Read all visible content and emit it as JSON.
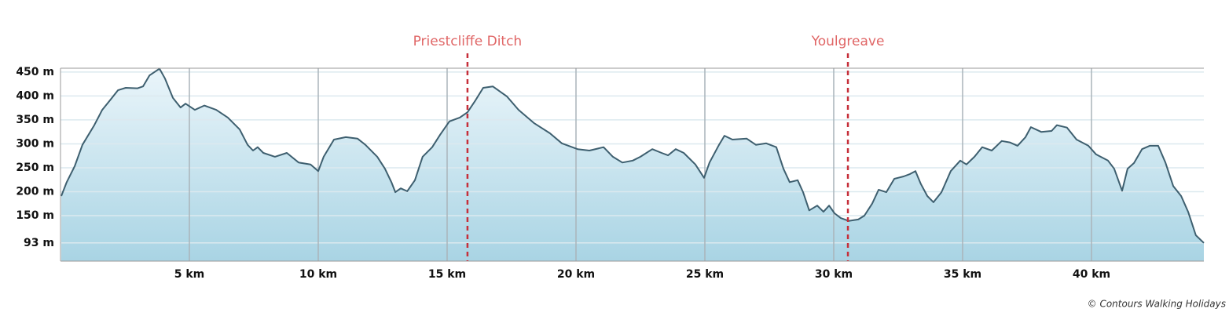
{
  "chart_data": {
    "type": "area",
    "x": [
      0.03,
      0.24,
      0.55,
      0.85,
      1.31,
      1.62,
      1.92,
      2.23,
      2.53,
      2.99,
      3.2,
      3.45,
      3.84,
      4.05,
      4.36,
      4.66,
      4.85,
      5.21,
      5.58,
      6.04,
      6.49,
      6.95,
      7.26,
      7.47,
      7.65,
      7.87,
      8.32,
      8.78,
      9.24,
      9.7,
      10.0,
      10.21,
      10.61,
      11.07,
      11.52,
      11.83,
      12.29,
      12.59,
      12.84,
      12.99,
      13.2,
      13.45,
      13.75,
      14.05,
      14.42,
      14.73,
      15.09,
      15.49,
      15.79,
      16.1,
      16.4,
      16.77,
      17.32,
      17.77,
      18.38,
      18.99,
      19.45,
      20.06,
      20.52,
      21.07,
      21.43,
      21.8,
      22.2,
      22.5,
      22.96,
      23.32,
      23.57,
      23.87,
      24.18,
      24.63,
      24.97,
      25.18,
      25.55,
      25.76,
      26.07,
      26.62,
      26.98,
      27.38,
      27.77,
      28.05,
      28.29,
      28.6,
      28.81,
      29.05,
      29.36,
      29.6,
      29.82,
      30.03,
      30.27,
      30.58,
      30.95,
      31.19,
      31.49,
      31.74,
      32.04,
      32.35,
      32.71,
      32.96,
      33.17,
      33.38,
      33.63,
      33.87,
      34.18,
      34.54,
      34.91,
      35.15,
      35.46,
      35.76,
      36.13,
      36.52,
      36.83,
      37.13,
      37.44,
      37.65,
      38.05,
      38.45,
      38.66,
      39.05,
      39.42,
      39.88,
      40.18,
      40.64,
      40.88,
      41.19,
      41.4,
      41.65,
      41.96,
      42.26,
      42.59,
      42.87,
      43.17,
      43.48,
      43.75,
      44.05,
      44.36
    ],
    "values": [
      191,
      220,
      253,
      298,
      339,
      371,
      391,
      412,
      417,
      416,
      420,
      443,
      457,
      437,
      396,
      376,
      384,
      371,
      380,
      371,
      355,
      330,
      298,
      286,
      293,
      281,
      273,
      281,
      261,
      257,
      243,
      273,
      309,
      314,
      311,
      298,
      273,
      248,
      220,
      199,
      207,
      201,
      224,
      273,
      293,
      319,
      347,
      355,
      366,
      391,
      417,
      420,
      399,
      371,
      343,
      322,
      301,
      289,
      286,
      293,
      273,
      261,
      265,
      273,
      289,
      281,
      276,
      289,
      281,
      257,
      229,
      261,
      298,
      317,
      309,
      311,
      298,
      301,
      293,
      248,
      220,
      224,
      199,
      161,
      171,
      158,
      171,
      155,
      145,
      139,
      142,
      150,
      175,
      204,
      199,
      227,
      232,
      237,
      243,
      216,
      191,
      178,
      199,
      243,
      265,
      257,
      273,
      293,
      286,
      306,
      303,
      296,
      314,
      335,
      325,
      327,
      339,
      334,
      309,
      296,
      278,
      265,
      248,
      202,
      248,
      260,
      289,
      296,
      296,
      261,
      212,
      191,
      158,
      109,
      93
    ],
    "color": "#3e5f6f",
    "fill_top": "#eaf5fa",
    "fill_bottom": "#a9d4e4",
    "xlim": [
      0,
      44.36
    ],
    "ylim": [
      55,
      458
    ],
    "xticks": [
      {
        "value": 5,
        "label": "5 km"
      },
      {
        "value": 10,
        "label": "10 km"
      },
      {
        "value": 15,
        "label": "15 km"
      },
      {
        "value": 20,
        "label": "20 km"
      },
      {
        "value": 25,
        "label": "25 km"
      },
      {
        "value": 30,
        "label": "30 km"
      },
      {
        "value": 35,
        "label": "35 km"
      },
      {
        "value": 40,
        "label": "40 km"
      }
    ],
    "yticks": [
      {
        "value": 93,
        "label": "93 m"
      },
      {
        "value": 150,
        "label": "150 m"
      },
      {
        "value": 200,
        "label": "200 m"
      },
      {
        "value": 250,
        "label": "250 m"
      },
      {
        "value": 300,
        "label": "300 m"
      },
      {
        "value": 350,
        "label": "350 m"
      },
      {
        "value": 400,
        "label": "400 m"
      },
      {
        "value": 450,
        "label": "450 m"
      }
    ],
    "grid": true,
    "annotations": [
      {
        "x": 15.79,
        "label": "Priestcliffe Ditch"
      },
      {
        "x": 30.55,
        "label": "Youlgreave"
      }
    ],
    "annotation_color": "#e06666",
    "credit": "© Contours Walking Holidays"
  }
}
